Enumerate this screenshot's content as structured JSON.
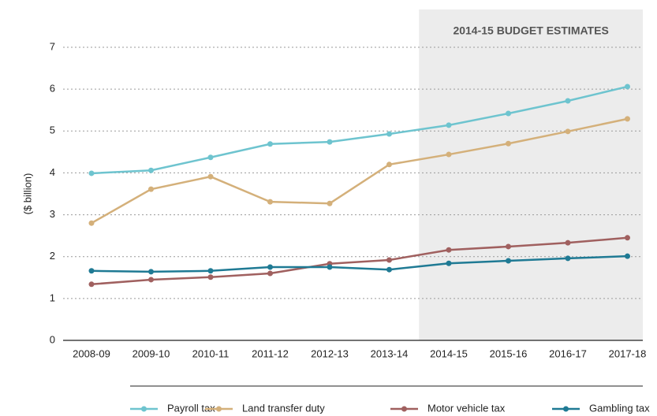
{
  "chart_data": {
    "type": "line",
    "y_label": "($ billion)",
    "annotation": {
      "text": "2014-15 BUDGET ESTIMATES",
      "from": "2014-15"
    },
    "categories": [
      "2008-09",
      "2009-10",
      "2010-11",
      "2011-12",
      "2012-13",
      "2013-14",
      "2014-15",
      "2015-16",
      "2016-17",
      "2017-18"
    ],
    "series": [
      {
        "name": "Payroll tax",
        "color": "#6ec4cf",
        "values": [
          3.99,
          4.06,
          4.37,
          4.69,
          4.74,
          4.93,
          5.14,
          5.42,
          5.72,
          6.06
        ]
      },
      {
        "name": "Land transfer duty",
        "color": "#d4b07a",
        "values": [
          2.8,
          3.61,
          3.91,
          3.31,
          3.27,
          4.2,
          4.44,
          4.7,
          4.99,
          5.29
        ]
      },
      {
        "name": "Motor vehicle tax",
        "color": "#a0605f",
        "values": [
          1.34,
          1.45,
          1.51,
          1.6,
          1.83,
          1.92,
          2.16,
          2.24,
          2.33,
          2.45
        ]
      },
      {
        "name": "Gambling tax",
        "color": "#1f7a94",
        "values": [
          1.66,
          1.64,
          1.66,
          1.75,
          1.75,
          1.69,
          1.84,
          1.9,
          1.96,
          2.01
        ]
      }
    ],
    "ylim": [
      0,
      7
    ],
    "yticks": [
      0,
      1,
      2,
      3,
      4,
      5,
      6,
      7
    ],
    "grid": true
  }
}
